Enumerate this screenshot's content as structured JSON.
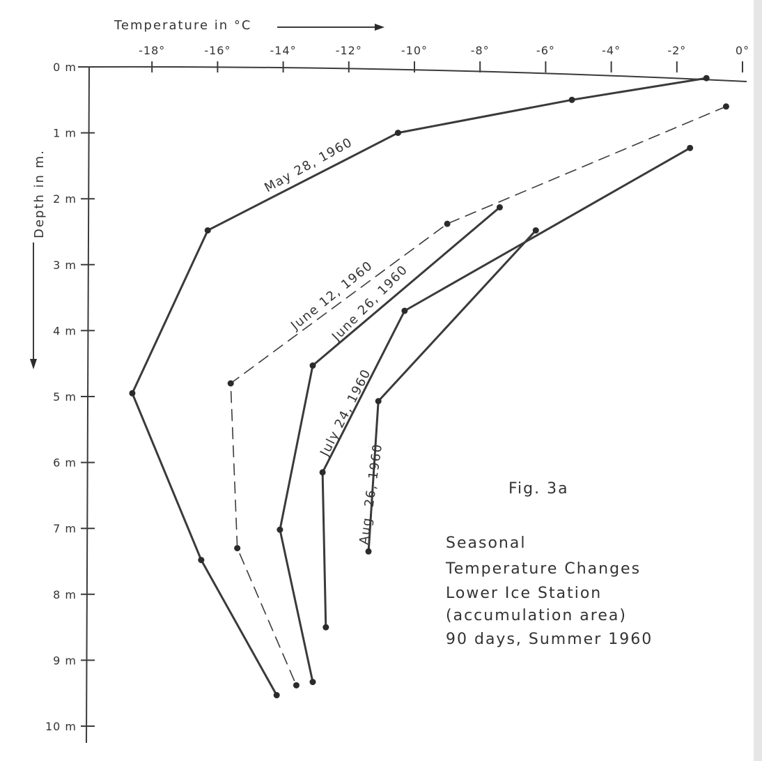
{
  "chart_data": {
    "type": "line",
    "xlabel": "Temperature in °C",
    "ylabel": "Depth in m.",
    "xlim": [
      -20,
      0
    ],
    "ylim": [
      0,
      10
    ],
    "x_ticks": [
      "-18°",
      "-16°",
      "-14°",
      "-12°",
      "-10°",
      "-8°",
      "-6°",
      "-4°",
      "-2°",
      "0°"
    ],
    "y_ticks": [
      "0 m",
      "1 m",
      "2 m",
      "3 m",
      "4 m",
      "5 m",
      "6 m",
      "7 m",
      "8 m",
      "9 m",
      "10 m"
    ],
    "figure_label": "Fig. 3a",
    "title_lines": [
      "Seasonal",
      "Temperature Changes",
      "Lower Ice Station",
      "(accumulation area)",
      "90 days, Summer 1960"
    ],
    "series": [
      {
        "name": "May 28, 1960",
        "style": "solid",
        "points": [
          {
            "temp": -1.1,
            "depth": 0.17
          },
          {
            "temp": -5.2,
            "depth": 0.5
          },
          {
            "temp": -10.5,
            "depth": 1.0
          },
          {
            "temp": -16.3,
            "depth": 2.48
          },
          {
            "temp": -18.6,
            "depth": 4.95
          },
          {
            "temp": -16.5,
            "depth": 7.48
          },
          {
            "temp": -14.2,
            "depth": 9.53
          }
        ]
      },
      {
        "name": "June 12, 1960",
        "style": "dashed",
        "points": [
          {
            "temp": -0.5,
            "depth": 0.6
          },
          {
            "temp": -9.0,
            "depth": 2.38
          },
          {
            "temp": -15.6,
            "depth": 4.8
          },
          {
            "temp": -15.4,
            "depth": 7.3
          },
          {
            "temp": -13.6,
            "depth": 9.38
          }
        ]
      },
      {
        "name": "June 26, 1960",
        "style": "solid",
        "points": [
          {
            "temp": -7.4,
            "depth": 2.13
          },
          {
            "temp": -13.1,
            "depth": 4.53
          },
          {
            "temp": -14.1,
            "depth": 7.02
          },
          {
            "temp": -13.1,
            "depth": 9.33
          }
        ]
      },
      {
        "name": "July 24, 1960",
        "style": "solid",
        "points": [
          {
            "temp": -1.6,
            "depth": 1.23
          },
          {
            "temp": -10.3,
            "depth": 3.7
          },
          {
            "temp": -12.8,
            "depth": 6.15
          },
          {
            "temp": -12.7,
            "depth": 8.5
          }
        ]
      },
      {
        "name": "Aug. 26, 1960",
        "style": "solid",
        "points": [
          {
            "temp": -6.3,
            "depth": 2.48
          },
          {
            "temp": -11.1,
            "depth": 5.07
          },
          {
            "temp": -11.4,
            "depth": 7.35
          }
        ]
      }
    ]
  }
}
